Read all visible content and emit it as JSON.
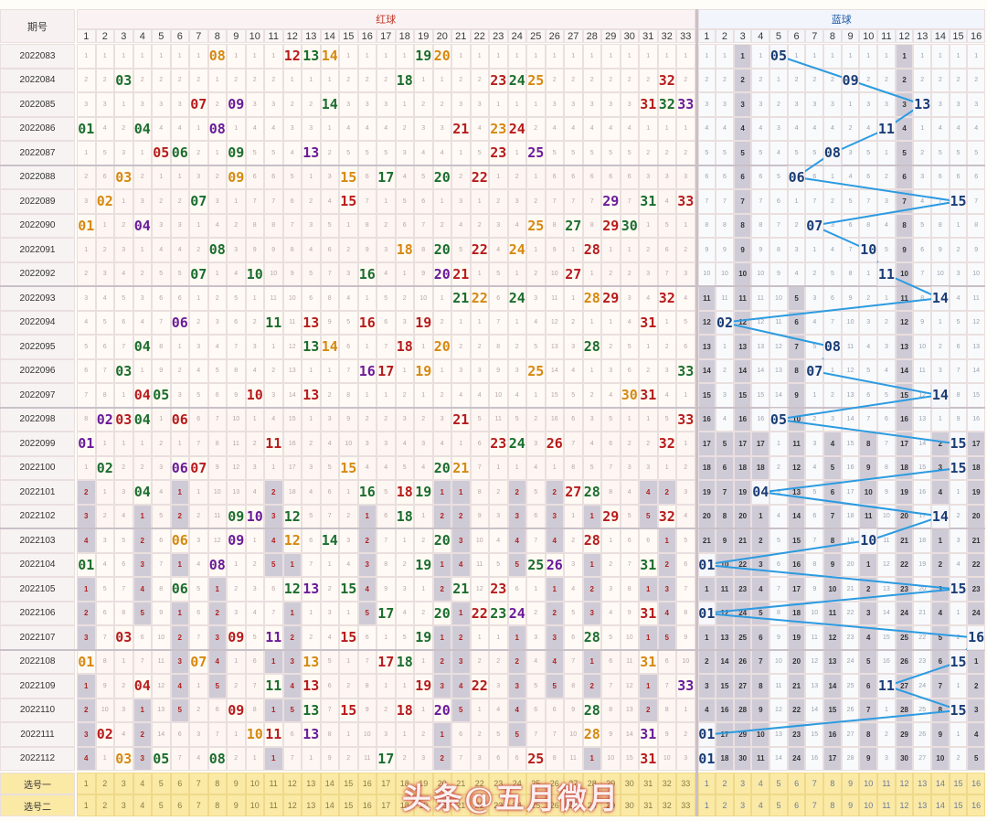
{
  "header": {
    "issue_label": "期号",
    "red_title": "红球",
    "blue_title": "蓝球"
  },
  "red_columns": [
    "1",
    "2",
    "3",
    "4",
    "5",
    "6",
    "7",
    "8",
    "9",
    "10",
    "11",
    "12",
    "13",
    "14",
    "15",
    "16",
    "17",
    "18",
    "19",
    "20",
    "21",
    "22",
    "23",
    "24",
    "25",
    "26",
    "27",
    "28",
    "29",
    "30",
    "31",
    "32",
    "33"
  ],
  "blue_columns": [
    "1",
    "2",
    "3",
    "4",
    "5",
    "6",
    "7",
    "8",
    "9",
    "10",
    "11",
    "12",
    "13",
    "14",
    "15",
    "16"
  ],
  "draws": [
    {
      "issue": "2022083",
      "red": [
        "08",
        "12",
        "13",
        "14",
        "19",
        "20"
      ],
      "blue": "05"
    },
    {
      "issue": "2022084",
      "red": [
        "03",
        "18",
        "23",
        "24",
        "25",
        "32"
      ],
      "blue": "09"
    },
    {
      "issue": "2022085",
      "red": [
        "07",
        "09",
        "14",
        "31",
        "32",
        "33"
      ],
      "blue": "13"
    },
    {
      "issue": "2022086",
      "red": [
        "01",
        "04",
        "08",
        "21",
        "23",
        "24"
      ],
      "blue": "11"
    },
    {
      "issue": "2022087",
      "red": [
        "05",
        "06",
        "09",
        "13",
        "23",
        "25"
      ],
      "blue": "08"
    },
    {
      "issue": "2022088",
      "red": [
        "03",
        "09",
        "15",
        "17",
        "20",
        "22"
      ],
      "blue": "06"
    },
    {
      "issue": "2022089",
      "red": [
        "02",
        "07",
        "15",
        "29",
        "31",
        "33"
      ],
      "blue": "15"
    },
    {
      "issue": "2022090",
      "red": [
        "01",
        "04",
        "25",
        "27",
        "29",
        "30"
      ],
      "blue": "07"
    },
    {
      "issue": "2022091",
      "red": [
        "08",
        "18",
        "20",
        "22",
        "24",
        "28"
      ],
      "blue": "10"
    },
    {
      "issue": "2022092",
      "red": [
        "07",
        "10",
        "16",
        "20",
        "21",
        "27"
      ],
      "blue": "11"
    },
    {
      "issue": "2022093",
      "red": [
        "21",
        "22",
        "24",
        "28",
        "29",
        "32"
      ],
      "blue": "14"
    },
    {
      "issue": "2022094",
      "red": [
        "06",
        "11",
        "13",
        "16",
        "19",
        "31"
      ],
      "blue": "02"
    },
    {
      "issue": "2022095",
      "red": [
        "04",
        "13",
        "14",
        "18",
        "20",
        "28"
      ],
      "blue": "08"
    },
    {
      "issue": "2022096",
      "red": [
        "03",
        "16",
        "17",
        "19",
        "25",
        "33"
      ],
      "blue": "07"
    },
    {
      "issue": "2022097",
      "red": [
        "04",
        "05",
        "10",
        "13",
        "30",
        "31"
      ],
      "blue": "14"
    },
    {
      "issue": "2022098",
      "red": [
        "02",
        "03",
        "04",
        "06",
        "21",
        "33"
      ],
      "blue": "05"
    },
    {
      "issue": "2022099",
      "red": [
        "01",
        "11",
        "23",
        "24",
        "26",
        "32"
      ],
      "blue": "15"
    },
    {
      "issue": "2022100",
      "red": [
        "02",
        "06",
        "07",
        "15",
        "20",
        "21"
      ],
      "blue": "15"
    },
    {
      "issue": "2022101",
      "red": [
        "04",
        "16",
        "18",
        "19",
        "27",
        "28"
      ],
      "blue": "04"
    },
    {
      "issue": "2022102",
      "red": [
        "09",
        "10",
        "12",
        "18",
        "29",
        "32"
      ],
      "blue": "14"
    },
    {
      "issue": "2022103",
      "red": [
        "06",
        "09",
        "12",
        "14",
        "20",
        "28"
      ],
      "blue": "10"
    },
    {
      "issue": "2022104",
      "red": [
        "01",
        "08",
        "19",
        "25",
        "26",
        "31"
      ],
      "blue": "01"
    },
    {
      "issue": "2022105",
      "red": [
        "06",
        "12",
        "13",
        "15",
        "21",
        "23"
      ],
      "blue": "15"
    },
    {
      "issue": "2022106",
      "red": [
        "17",
        "20",
        "22",
        "23",
        "24",
        "31"
      ],
      "blue": "01"
    },
    {
      "issue": "2022107",
      "red": [
        "03",
        "09",
        "11",
        "15",
        "19",
        "28"
      ],
      "blue": "16"
    },
    {
      "issue": "2022108",
      "red": [
        "01",
        "07",
        "13",
        "17",
        "18",
        "31"
      ],
      "blue": "15"
    },
    {
      "issue": "2022109",
      "red": [
        "04",
        "11",
        "13",
        "19",
        "22",
        "33"
      ],
      "blue": "11"
    },
    {
      "issue": "2022110",
      "red": [
        "09",
        "13",
        "15",
        "18",
        "20",
        "28"
      ],
      "blue": "15"
    },
    {
      "issue": "2022111",
      "red": [
        "02",
        "10",
        "11",
        "13",
        "28",
        "31"
      ],
      "blue": "01"
    },
    {
      "issue": "2022112",
      "red": [
        "03",
        "05",
        "08",
        "17",
        "25",
        "31"
      ],
      "blue": "01"
    }
  ],
  "footer_rows": [
    {
      "label": "选号一"
    },
    {
      "label": "选号二"
    }
  ],
  "watermark": "头条@五月微月",
  "colors": {
    "hit_red": "#b71c1c",
    "hit_green": "#1b6e2e",
    "hit_orange": "#d68910",
    "hit_purple": "#6a1b9a",
    "blue_hit": "#1a3c75",
    "link_line": "#2c9be0",
    "shaded": "#cfcbd6",
    "footer": "#fbe9a6"
  }
}
